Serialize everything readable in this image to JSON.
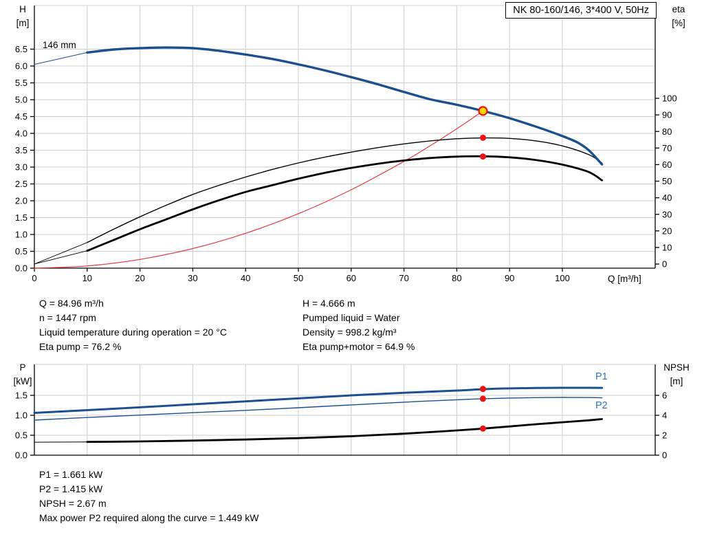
{
  "title_box": "NK 80-160/146, 3*400 V, 50Hz",
  "impeller_label": "146 mm",
  "axis_titles": {
    "h": [
      "H",
      "[m]"
    ],
    "eta": [
      "eta",
      "[%]"
    ],
    "q": "Q [m³/h]",
    "p": [
      "P",
      "[kW]"
    ],
    "npsh": [
      "NPSH",
      "[m]"
    ]
  },
  "curve_labels": {
    "p1": "P1",
    "p2": "P2"
  },
  "info_top_left": [
    "Q = 84.96 m³/h",
    "n = 1447 rpm",
    "Liquid temperature during operation = 20 °C",
    "Eta pump = 76.2 %"
  ],
  "info_top_right": [
    "H = 4.666 m",
    "Pumped liquid = Water",
    "Density = 998.2 kg/m³",
    "Eta pump+motor = 64.9 %"
  ],
  "info_bottom": [
    "P1 = 1.661 kW",
    "P2 = 1.415 kW",
    "NPSH = 2.67 m",
    "Max power P2 required along the curve = 1.449 kW"
  ],
  "colors": {
    "blue": "#1c4f8f",
    "label_blue": "#2e74b5",
    "red": "#e03c3c",
    "marker_red": "#ee1111",
    "marker_yellow": "#ffd800",
    "grid": "#cccccc",
    "axis": "#000000"
  },
  "chart_data": [
    {
      "id": "main",
      "type": "line",
      "title": "NK 80-160/146, 3*400 V, 50Hz",
      "xlabel": "Q [m³/h]",
      "xlim": [
        0,
        117.5
      ],
      "x_ticks": [
        0,
        10,
        20,
        30,
        40,
        50,
        60,
        70,
        80,
        90,
        100
      ],
      "show_x_tick_labels": true,
      "left_axis": {
        "label": "H [m]",
        "ticks": [
          0,
          0.5,
          1,
          1.5,
          2,
          2.5,
          3,
          3.5,
          4,
          4.5,
          5,
          5.5,
          6,
          6.5
        ],
        "decimals": 1,
        "ylim": [
          0,
          7.8
        ]
      },
      "right_axis": {
        "label": "eta [%]",
        "ticks": [
          0,
          10,
          20,
          30,
          40,
          50,
          60,
          70,
          80,
          90,
          100
        ],
        "decimals": 0,
        "ylim": [
          0,
          100
        ]
      },
      "series": [
        {
          "name": "h-curve-tail",
          "axis": "left",
          "color": "#1c4f8f",
          "width": 1,
          "x": [
            0,
            10
          ],
          "y": [
            6.05,
            6.4
          ]
        },
        {
          "name": "eta-pump-tail",
          "axis": "right",
          "color": "#000000",
          "width": 0.9,
          "x": [
            0,
            10
          ],
          "y": [
            0,
            13
          ]
        },
        {
          "name": "eta-pump-motor-tail",
          "axis": "right",
          "color": "#000000",
          "width": 0.9,
          "x": [
            0,
            10
          ],
          "y": [
            0,
            8
          ]
        },
        {
          "name": "system-curve",
          "axis": "left",
          "color": "#e03c3c",
          "width": 1.2,
          "x": [
            0,
            10,
            20,
            30,
            40,
            50,
            60,
            70,
            75,
            80,
            84.96
          ],
          "y": [
            0,
            0.065,
            0.259,
            0.582,
            1.034,
            1.616,
            2.327,
            3.167,
            3.636,
            4.137,
            4.666
          ]
        },
        {
          "name": "eta-pump",
          "axis": "right",
          "color": "#000000",
          "width": 1.4,
          "x": [
            10,
            15,
            20,
            25,
            30,
            35,
            40,
            45,
            50,
            55,
            60,
            65,
            70,
            75,
            80,
            85,
            90,
            95,
            100,
            105,
            107.5
          ],
          "y": [
            13,
            21,
            28.5,
            35.5,
            42,
            47.5,
            52.5,
            57,
            61,
            64.5,
            67.5,
            70.2,
            72.5,
            74.3,
            75.6,
            76.1,
            75.8,
            74.3,
            71.3,
            66,
            61
          ]
        },
        {
          "name": "eta-pump-motor",
          "axis": "right",
          "color": "#000000",
          "width": 2.8,
          "x": [
            10,
            15,
            20,
            25,
            30,
            35,
            40,
            45,
            50,
            55,
            60,
            65,
            70,
            75,
            80,
            85,
            90,
            95,
            100,
            105,
            107.5
          ],
          "y": [
            8,
            14.5,
            21,
            27,
            33,
            38.5,
            43.5,
            47.5,
            51.5,
            55,
            58,
            60.5,
            62.5,
            64,
            64.8,
            65,
            64.4,
            62.8,
            60,
            55.5,
            50.5
          ]
        },
        {
          "name": "h-curve-146mm",
          "axis": "left",
          "color": "#1c4f8f",
          "width": 3.4,
          "x": [
            10,
            15,
            20,
            25,
            30,
            35,
            40,
            45,
            50,
            55,
            60,
            65,
            70,
            75,
            80,
            84.96,
            90,
            95,
            100,
            103,
            105,
            107.5
          ],
          "y": [
            6.4,
            6.49,
            6.53,
            6.55,
            6.53,
            6.45,
            6.34,
            6.21,
            6.05,
            5.87,
            5.67,
            5.46,
            5.23,
            5.01,
            4.85,
            4.666,
            4.45,
            4.2,
            3.92,
            3.72,
            3.5,
            3.08
          ]
        }
      ],
      "markers": [
        {
          "name": "eta-pump-point",
          "axis": "right",
          "x": 84.96,
          "y": 76.2,
          "r": 4.5,
          "fill": "#ee1111"
        },
        {
          "name": "eta-pump-motor-point",
          "axis": "right",
          "x": 84.96,
          "y": 64.9,
          "r": 4.5,
          "fill": "#ee1111"
        },
        {
          "name": "duty-point",
          "axis": "left",
          "x": 84.96,
          "y": 4.666,
          "r": 6,
          "fill": "#ffd800",
          "stroke": "#ee1111"
        }
      ]
    },
    {
      "id": "power",
      "type": "line",
      "title": "",
      "xlabel": "",
      "xlim": [
        0,
        117.5
      ],
      "x_ticks": [
        0,
        10,
        20,
        30,
        40,
        50,
        60,
        70,
        80,
        90,
        100
      ],
      "show_x_tick_labels": false,
      "left_axis": {
        "label": "P [kW]",
        "ticks": [
          0,
          0.5,
          1,
          1.5
        ],
        "decimals": 1,
        "ylim": [
          0,
          2.28
        ]
      },
      "right_axis": {
        "label": "NPSH [m]",
        "ticks": [
          0,
          2,
          4,
          6
        ],
        "decimals": 0,
        "ylim": [
          0,
          9.1
        ]
      },
      "series": [
        {
          "name": "npsh-tail",
          "axis": "right",
          "color": "#000000",
          "width": 1,
          "x": [
            0,
            10
          ],
          "y": [
            1.3,
            1.33
          ]
        },
        {
          "name": "npsh",
          "axis": "right",
          "color": "#000000",
          "width": 2.8,
          "x": [
            10,
            20,
            30,
            40,
            50,
            60,
            70,
            80,
            85,
            90,
            95,
            100,
            105,
            107.5
          ],
          "y": [
            1.33,
            1.38,
            1.46,
            1.57,
            1.71,
            1.9,
            2.16,
            2.48,
            2.67,
            2.88,
            3.1,
            3.3,
            3.5,
            3.62
          ]
        },
        {
          "name": "p2",
          "axis": "left",
          "color": "#1c4f8f",
          "width": 1.4,
          "x": [
            0,
            10,
            20,
            30,
            40,
            50,
            60,
            70,
            80,
            85,
            90,
            95,
            100,
            105,
            107.5
          ],
          "y": [
            0.88,
            0.945,
            1.005,
            1.065,
            1.125,
            1.19,
            1.26,
            1.33,
            1.39,
            1.415,
            1.432,
            1.443,
            1.448,
            1.445,
            1.438
          ]
        },
        {
          "name": "p1",
          "axis": "left",
          "color": "#1c4f8f",
          "width": 3,
          "x": [
            0,
            10,
            20,
            30,
            40,
            50,
            60,
            70,
            80,
            85,
            90,
            95,
            100,
            105,
            107.5
          ],
          "y": [
            1.06,
            1.13,
            1.2,
            1.275,
            1.35,
            1.425,
            1.5,
            1.565,
            1.62,
            1.655,
            1.675,
            1.685,
            1.69,
            1.69,
            1.688
          ]
        }
      ],
      "markers": [
        {
          "name": "p1-point",
          "axis": "left",
          "x": 84.96,
          "y": 1.661,
          "r": 4.5,
          "fill": "#ee1111"
        },
        {
          "name": "p2-point",
          "axis": "left",
          "x": 84.96,
          "y": 1.415,
          "r": 4.5,
          "fill": "#ee1111"
        },
        {
          "name": "npsh-point",
          "axis": "right",
          "x": 84.96,
          "y": 2.67,
          "r": 4.5,
          "fill": "#ee1111"
        }
      ]
    }
  ]
}
